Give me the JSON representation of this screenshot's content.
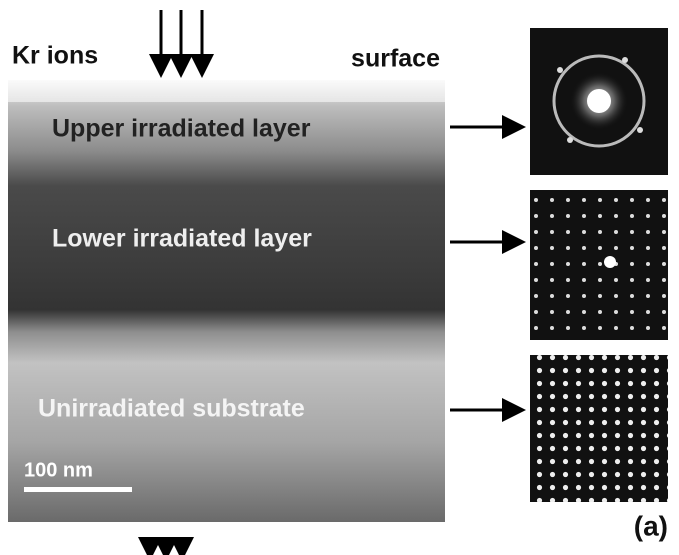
{
  "figure": {
    "beam_label": "Kr ions",
    "surface_label": "surface",
    "layers": [
      "Upper irradiated layer",
      "Lower irradiated layer",
      "Unirradiated substrate"
    ],
    "scale_bar": "100 nm",
    "panel_label": "(a)"
  }
}
